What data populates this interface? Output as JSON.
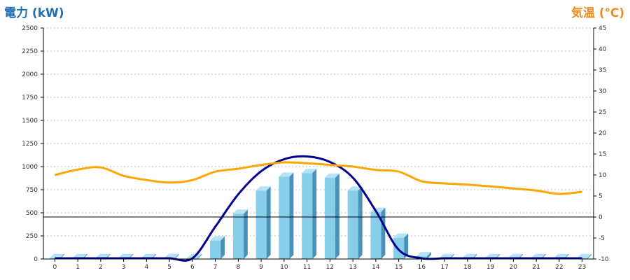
{
  "chart_data": {
    "type": "bar",
    "title_left": "電力 (kW)",
    "title_right": "気温 (℃)",
    "categories": [
      "0",
      "1",
      "2",
      "3",
      "4",
      "5",
      "6",
      "7",
      "8",
      "9",
      "10",
      "11",
      "12",
      "13",
      "14",
      "15",
      "16",
      "17",
      "18",
      "19",
      "20",
      "21",
      "22",
      "23"
    ],
    "y_left": {
      "min": 0,
      "max": 2500,
      "ticks": [
        0,
        250,
        500,
        750,
        1000,
        1250,
        1500,
        1750,
        2000,
        2250,
        2500
      ]
    },
    "y_right": {
      "min": -10,
      "max": 45,
      "ticks": [
        -10,
        -5,
        0,
        5,
        10,
        15,
        20,
        25,
        30,
        35,
        40,
        45
      ]
    },
    "grid": true,
    "bars": {
      "axis": "left",
      "color": "#87ceeb",
      "values": [
        10,
        10,
        10,
        10,
        10,
        10,
        10,
        200,
        490,
        740,
        890,
        930,
        880,
        740,
        510,
        230,
        30,
        10,
        10,
        10,
        10,
        10,
        10,
        10
      ]
    },
    "power_line": {
      "axis": "left",
      "color": "#000090",
      "values": [
        0,
        0,
        0,
        0,
        0,
        0,
        0,
        350,
        700,
        950,
        1080,
        1110,
        1050,
        880,
        520,
        100,
        0,
        0,
        0,
        0,
        0,
        0,
        0,
        0
      ]
    },
    "temperature_line": {
      "axis": "right",
      "color": "#ffa500",
      "values": [
        10,
        11.3,
        11.8,
        9.8,
        8.8,
        8.2,
        8.8,
        10.8,
        11.5,
        12.4,
        13,
        12.8,
        12.4,
        12,
        11.2,
        10.8,
        8.5,
        8,
        7.7,
        7.3,
        6.8,
        6.3,
        5.5,
        6
      ]
    }
  }
}
